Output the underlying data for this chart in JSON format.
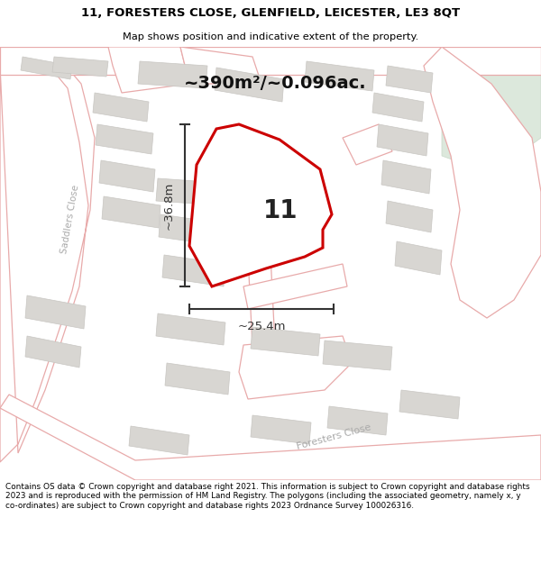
{
  "title_line1": "11, FORESTERS CLOSE, GLENFIELD, LEICESTER, LE3 8QT",
  "title_line2": "Map shows position and indicative extent of the property.",
  "area_label": "~390m²/~0.096ac.",
  "property_number": "11",
  "width_label": "~25.4m",
  "height_label": "~36.8m",
  "footer_text": "Contains OS data © Crown copyright and database right 2021. This information is subject to Crown copyright and database rights 2023 and is reproduced with the permission of HM Land Registry. The polygons (including the associated geometry, namely x, y co-ordinates) are subject to Crown copyright and database rights 2023 Ordnance Survey 100026316.",
  "map_bg": "#f7f5f2",
  "road_line_color": "#e8aaaa",
  "road_fill_color": "#ffffff",
  "building_fill": "#d8d6d2",
  "building_edge": "#c8c6c2",
  "property_fill": "#ffffff",
  "property_edge": "#cc0000",
  "property_edge_width": 2.2,
  "green_fill": "#ddeedd",
  "dim_color": "#333333",
  "street_label_color": "#aaaaaa",
  "number_color": "#222222",
  "area_color": "#111111"
}
